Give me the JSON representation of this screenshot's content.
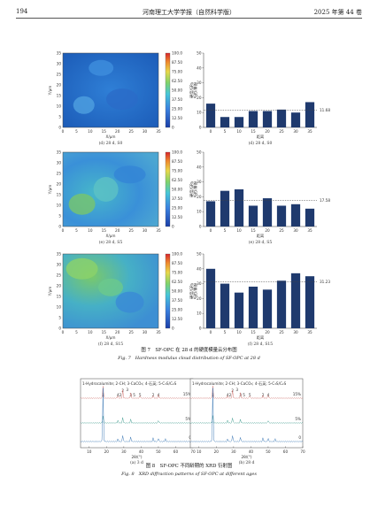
{
  "header": {
    "page_number": "194",
    "journal": "河南理工大学学报（自然科学版）",
    "issue": "2025 年第 44 卷"
  },
  "fig7": {
    "caption_cn": "图 7　SF-OPC 在 28 d 的硬度模量云分布图",
    "caption_en": "Fig. 7　Hardness modulus cloud distribution of SF-OPC at 28 d",
    "map_xlabel": "X/μm",
    "map_ylabel": "Y/μm",
    "map_ticks": [
      "0",
      "5",
      "10",
      "15",
      "20",
      "25",
      "30",
      "35"
    ],
    "colorbar_label": "模量/GPa",
    "colorbar_ticks": [
      "100.0",
      "87.50",
      "75.00",
      "62.50",
      "50.00",
      "37.50",
      "25.00",
      "12.50",
      "0"
    ],
    "bar_ylabel": "硬度/GPa",
    "bar_xlabel": "距离",
    "bar_yticks": [
      "0",
      "10",
      "20",
      "30",
      "40",
      "50"
    ],
    "colors": {
      "bar": "#1f3a6e",
      "map_low": "#1a5fb4",
      "map_high": "#d7262b"
    },
    "panels": [
      {
        "map_label": "(d) 28 d, S0",
        "bar_label": "(d) 28 d, S0",
        "mean_label": "11.68"
      },
      {
        "map_label": "(e) 28 d, S5",
        "bar_label": "(e) 28 d, S5",
        "mean_label": "17.58"
      },
      {
        "map_label": "(f) 28 d, S15",
        "bar_label": "(f) 28 d, S15",
        "mean_label": "31.23"
      }
    ]
  },
  "fig8": {
    "caption_cn": "图 8　SF-OPC 不同龄期的 XRD 衍射图",
    "caption_en": "Fig. 8　XRD diffraction patterns of SF-OPC at different ages",
    "legend": "1-Hydrocalumite; 2-CH; 3-CaCO₃; 4-石英; 5-C₃S/C₂S",
    "xlabel": "2θ/(°)",
    "xticks": [
      "10",
      "20",
      "30",
      "40",
      "50",
      "60",
      "70"
    ],
    "curve_labels": [
      "15%",
      "5%",
      "0"
    ],
    "peak_labels": [
      "1",
      "2",
      "3",
      "4",
      "5",
      "2",
      "4",
      "3",
      "2",
      "5"
    ],
    "panels": [
      {
        "label": "(a) 3 d"
      },
      {
        "label": "(b) 28 d"
      }
    ]
  },
  "chart_data": [
    {
      "type": "bar",
      "title": "(d) 28 d, S0",
      "xlabel": "距离",
      "ylabel": "硬度/GPa",
      "categories": [
        "0",
        "5",
        "10",
        "15",
        "20",
        "25",
        "30",
        "35"
      ],
      "values": [
        16,
        7,
        7,
        11,
        11,
        12,
        10,
        17
      ],
      "ylim": [
        0,
        50
      ],
      "mean": 11.68
    },
    {
      "type": "bar",
      "title": "(e) 28 d, S5",
      "xlabel": "距离",
      "ylabel": "硬度/GPa",
      "categories": [
        "0",
        "5",
        "10",
        "15",
        "20",
        "25",
        "30",
        "35"
      ],
      "values": [
        17,
        24,
        25,
        14,
        19,
        14,
        15,
        12
      ],
      "ylim": [
        0,
        50
      ],
      "mean": 17.58
    },
    {
      "type": "bar",
      "title": "(f) 28 d, S15",
      "xlabel": "距离",
      "ylabel": "硬度/GPa",
      "categories": [
        "0",
        "5",
        "10",
        "15",
        "20",
        "25",
        "30",
        "35"
      ],
      "values": [
        40,
        30,
        24,
        28,
        26,
        32,
        37,
        35
      ],
      "ylim": [
        0,
        50
      ],
      "mean": 31.23
    }
  ]
}
